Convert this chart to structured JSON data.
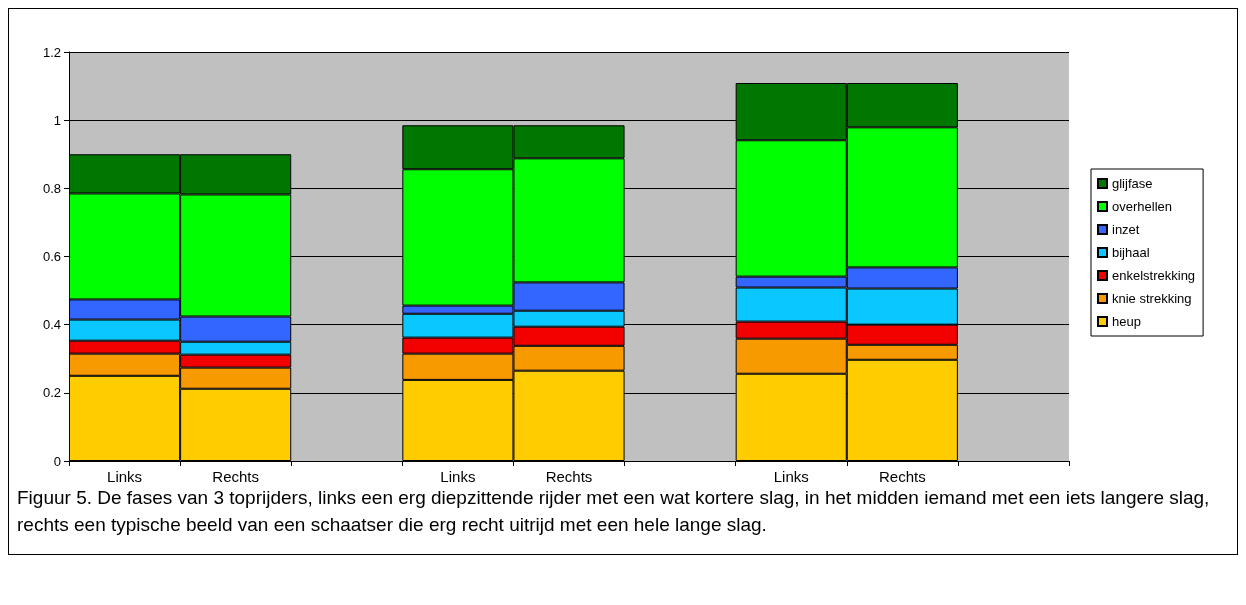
{
  "chart_data": {
    "type": "bar",
    "stacked": true,
    "categories": [
      "Links",
      "Rechts",
      null,
      "Links",
      "Rechts",
      null,
      "Links",
      "Rechts",
      null
    ],
    "series": [
      {
        "name": "heup",
        "color": "#ffcc00",
        "values": [
          0.25,
          0.212,
          null,
          0.238,
          0.265,
          null,
          0.256,
          0.297,
          null
        ]
      },
      {
        "name": "knie strekking",
        "color": "#f79a00",
        "values": [
          0.065,
          0.062,
          null,
          0.077,
          0.073,
          null,
          0.103,
          0.044,
          null
        ]
      },
      {
        "name": "enkelstrekking",
        "color": "#f20000",
        "values": [
          0.038,
          0.038,
          null,
          0.047,
          0.056,
          null,
          0.05,
          0.059,
          null
        ]
      },
      {
        "name": "bijhaal",
        "color": "#0ac8ff",
        "values": [
          0.062,
          0.038,
          null,
          0.07,
          0.047,
          null,
          0.1,
          0.106,
          null
        ]
      },
      {
        "name": "inzet",
        "color": "#3366ff",
        "values": [
          0.059,
          0.074,
          null,
          0.024,
          0.083,
          null,
          0.032,
          0.062,
          null
        ]
      },
      {
        "name": "overhellen",
        "color": "#00ff00",
        "values": [
          0.311,
          0.358,
          null,
          0.4,
          0.364,
          null,
          0.4,
          0.411,
          null
        ]
      },
      {
        "name": "glijfase",
        "color": "#007700",
        "values": [
          0.115,
          0.118,
          null,
          0.129,
          0.097,
          null,
          0.168,
          0.13,
          null
        ]
      }
    ],
    "ylim": [
      0,
      1.2
    ],
    "yticks": [
      0,
      0.2,
      0.4,
      0.6,
      0.8,
      1,
      1.2
    ],
    "grid": "y",
    "legend": "right",
    "annotations": [
      "Figuur 5. De fases van 3 toprijders, links een erg diepzittende rijder met een wat kortere slag, in het midden iemand met een iets langere slag, rechts een typische beeld van een schaatser die erg recht uitrijd met een hele lange slag."
    ]
  }
}
